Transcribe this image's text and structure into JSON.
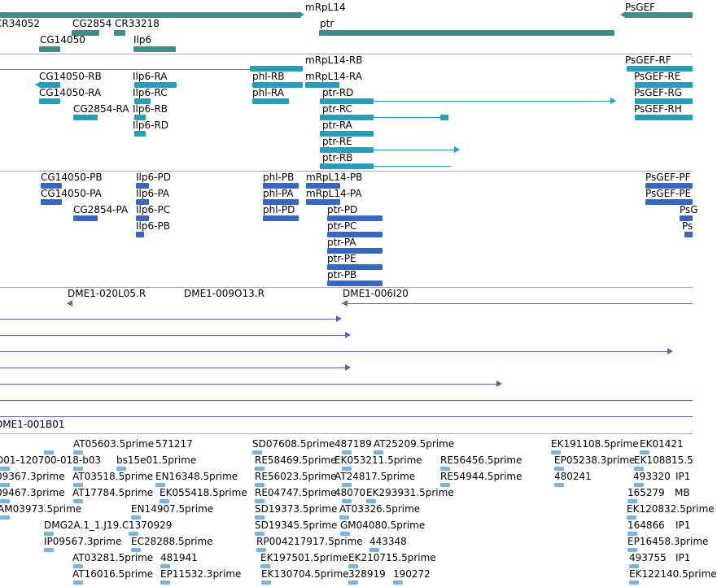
{
  "colors": {
    "gene": "#3a8e8c",
    "transcript": "#1aa2c0",
    "protein": "#3068cc",
    "clone": "#7a55a8",
    "est": "#7ab4dc",
    "separator": "#a8a8a8"
  },
  "tracks": {
    "genes": {
      "labels": [
        "mRpL14",
        "PsGEF",
        "CR34052",
        "CG2854",
        "CR33218",
        "ptr",
        "CG14050",
        "Ilp6"
      ]
    },
    "transcripts": {
      "labels": [
        "mRpL14-RB",
        "PsGEF-RF",
        "CG14050-RB",
        "Ilp6-RA",
        "phl-RB",
        "mRpL14-RA",
        "PsGEF-RE",
        "CG14050-RA",
        "Ilp6-RC",
        "phl-RA",
        "ptr-RD",
        "PsGEF-RG",
        "CG2854-RA",
        "Ilp6-RB",
        "ptr-RC",
        "PsGEF-RH",
        "Ilp6-RD",
        "ptr-RA",
        "ptr-RE",
        "ptr-RB"
      ]
    },
    "proteins": {
      "labels": [
        "CG14050-PB",
        "Ilp6-PD",
        "phl-PB",
        "mRpL14-PB",
        "PsGEF-PF",
        "CG14050-PA",
        "Ilp6-PA",
        "phl-PA",
        "mRpL14-PA",
        "PsGEF-PE",
        "CG2854-PA",
        "Ilp6-PC",
        "phl-PD",
        "ptr-PD",
        "PsG",
        "Ilp6-PB",
        "ptr-PC",
        "Ps",
        "ptr-PA",
        "ptr-PE",
        "ptr-PB"
      ]
    },
    "clones": {
      "labels": [
        "DME1-020L05.R",
        "DME1-009O13.R",
        "DME1-006I20",
        "DME1-001B01"
      ]
    },
    "ests": {
      "labels": [
        "AT05603.5prime",
        "571217",
        "SD07608.5prime",
        "487189",
        "AT25209.5prime",
        "EK191108.5prime",
        "EK01421",
        "D01-120700-018-b03",
        "bs15e01.5prime",
        "RE58469.5prime",
        "EK053211.5prime",
        "RE56456.5prime",
        "EP05238.3prime",
        "EK108815.5",
        "09367.3prime",
        "AT03518.5prime",
        "EN16348.5prime",
        "RE56023.5prime",
        "AT24817.5prime",
        "RE54944.5prime",
        "480241",
        "493320",
        "IP1",
        "09467.3prime",
        "AT17784.5prime",
        "EK055418.5prime",
        "RE04747.5prime",
        "48070",
        "EK293931.5prime",
        "165279",
        "MB",
        "AM03973.5prime",
        "EN14907.5prime",
        "SD19373.5prime",
        "AT03326.5prime",
        "EK120832.5prime",
        "DMG2A.1_1.J19.C",
        "1370929",
        "SD19345.5prime",
        "GM04080.5prime",
        "164866",
        "IP1",
        "IP09567.3prime",
        "EC28288.5prime",
        "RP004217917.5prime",
        "443348",
        "EP16458.3prime",
        "AT03281.5prime",
        "481941",
        "EK197501.5prime",
        "EK210715.5prime",
        "493755",
        "IP1",
        "AT16016.5prime",
        "EP11532.3prime",
        "EK130704.5prime",
        "328919",
        "190272",
        "EK122140.5prime"
      ]
    }
  }
}
